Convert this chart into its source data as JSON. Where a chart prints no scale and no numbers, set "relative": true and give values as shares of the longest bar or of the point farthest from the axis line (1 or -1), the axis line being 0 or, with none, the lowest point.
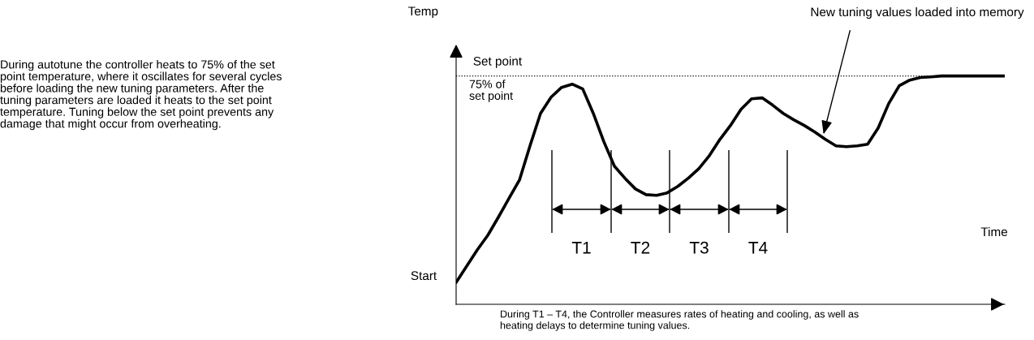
{
  "chart_data": {
    "type": "line",
    "relative": true,
    "xlabel": "Time",
    "ylabel": "Temp",
    "categories": [
      null,
      null,
      null,
      null,
      null,
      null,
      null,
      null,
      null,
      null,
      null,
      null,
      null,
      null,
      null,
      null,
      null,
      null,
      null,
      null,
      null,
      null,
      null,
      null,
      null,
      null,
      null,
      null,
      null,
      null,
      null,
      null,
      null,
      null,
      null,
      null,
      null,
      null,
      null,
      null,
      null,
      null,
      null,
      null,
      null,
      null,
      null,
      null,
      null,
      null,
      null,
      null,
      null
    ],
    "series": [
      {
        "color": "#000000",
        "values": [
          0.096,
          0.167,
          0.238,
          0.302,
          0.381,
          0.463,
          0.544,
          0.694,
          0.836,
          0.907,
          0.95,
          0.964,
          0.943,
          0.836,
          0.712,
          0.605,
          0.552,
          0.505,
          0.48,
          0.477,
          0.488,
          0.516,
          0.552,
          0.594,
          0.651,
          0.722,
          0.783,
          0.854,
          0.9,
          0.904,
          0.872,
          0.836,
          0.808,
          0.783,
          0.754,
          0.722,
          0.694,
          0.69,
          0.694,
          0.701,
          0.772,
          0.879,
          0.957,
          0.982,
          0.993,
          0.996,
          1,
          1,
          1,
          1,
          1,
          1,
          1
        ]
      }
    ],
    "ref_lines": [
      {
        "axis": "y",
        "value": 1,
        "label": "Set point",
        "color": "#000000",
        "line_style": "dotted"
      }
    ],
    "annotations": [
      "During autotune the controller heats to 75% of the set\npoint temperature, where it oscillates for several cycles\nbefore loading the new tuning parameters. After the\ntuning parameters are loaded it heats to the set point\ntemperature. Tuning below the set point prevents any\ndamage that might occur from overheating.",
      "Start",
      "75% of\nset point",
      "New tuning values loaded into memory",
      "T1",
      "T2",
      "T3",
      "T4",
      "During T1 – T4, the Controller measures rates of heating and cooling, as well as\nheating delays to determine tuning values."
    ],
    "grid": false,
    "legend": false,
    "marker": "none",
    "line_style": "solid"
  }
}
